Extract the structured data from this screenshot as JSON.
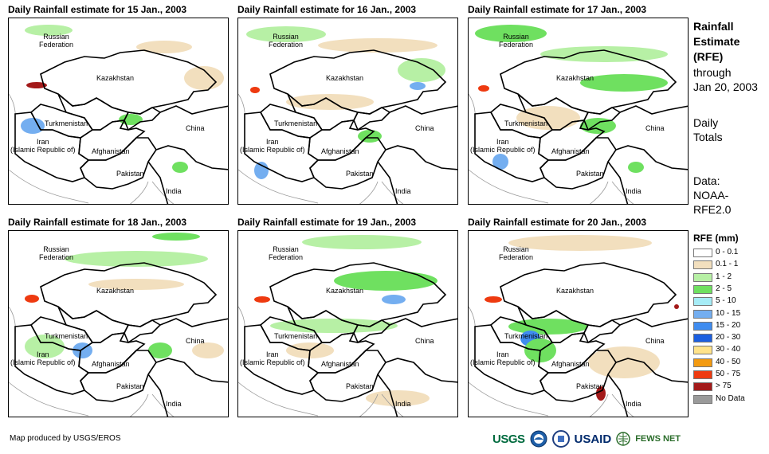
{
  "panels": [
    {
      "title": "Daily Rainfall estimate for 15 Jan., 2003",
      "day": 15
    },
    {
      "title": "Daily Rainfall estimate for 16 Jan., 2003",
      "day": 16
    },
    {
      "title": "Daily Rainfall estimate for 17 Jan., 2003",
      "day": 17
    },
    {
      "title": "Daily Rainfall estimate for 18 Jan., 2003",
      "day": 18
    },
    {
      "title": "Daily Rainfall estimate for 19 Jan., 2003",
      "day": 19
    },
    {
      "title": "Daily Rainfall estimate for 20 Jan., 2003",
      "day": 20
    }
  ],
  "map_labels": {
    "russia": "Russian\nFederation",
    "kazakhstan": "Kazakhstan",
    "turkmenistan": "Turkmenistan",
    "iran": "Iran\n(Islamic Republic of)",
    "afghanistan": "Afghanistan",
    "pakistan": "Pakistan",
    "india": "India",
    "china": "China"
  },
  "sidebar": {
    "title": "Rainfall\nEstimate\n(RFE)",
    "through": "through\nJan 20, 2003",
    "daily": "Daily\nTotals",
    "data_source": "Data:\nNOAA-\nRFE2.0"
  },
  "legend": {
    "title": "RFE (mm)",
    "items": [
      {
        "label": "0 - 0.1",
        "color": "#ffffff"
      },
      {
        "label": "0.1 - 1",
        "color": "#f2dfbe"
      },
      {
        "label": "1 - 2",
        "color": "#b7f0a5"
      },
      {
        "label": "2 - 5",
        "color": "#6fe060"
      },
      {
        "label": "5 - 10",
        "color": "#a6ecf6"
      },
      {
        "label": "10 - 15",
        "color": "#74aef0"
      },
      {
        "label": "15 - 20",
        "color": "#3f8cf0"
      },
      {
        "label": "20 - 30",
        "color": "#1c5fe0"
      },
      {
        "label": "30 - 40",
        "color": "#ffe38a"
      },
      {
        "label": "40 - 50",
        "color": "#f39a10"
      },
      {
        "label": "50 - 75",
        "color": "#ee3a10"
      },
      {
        "label": "> 75",
        "color": "#a31a1a"
      },
      {
        "label": "No Data",
        "color": "#9a9a9a"
      }
    ]
  },
  "credit": "Map produced by USGS/EROS",
  "logos": [
    "USGS",
    "NOAA",
    "USAID",
    "FEWS NET"
  ],
  "logo_colors": {
    "usgs": "#006b3f",
    "usaid": "#002a6c",
    "fews": "#2a6c2a"
  }
}
